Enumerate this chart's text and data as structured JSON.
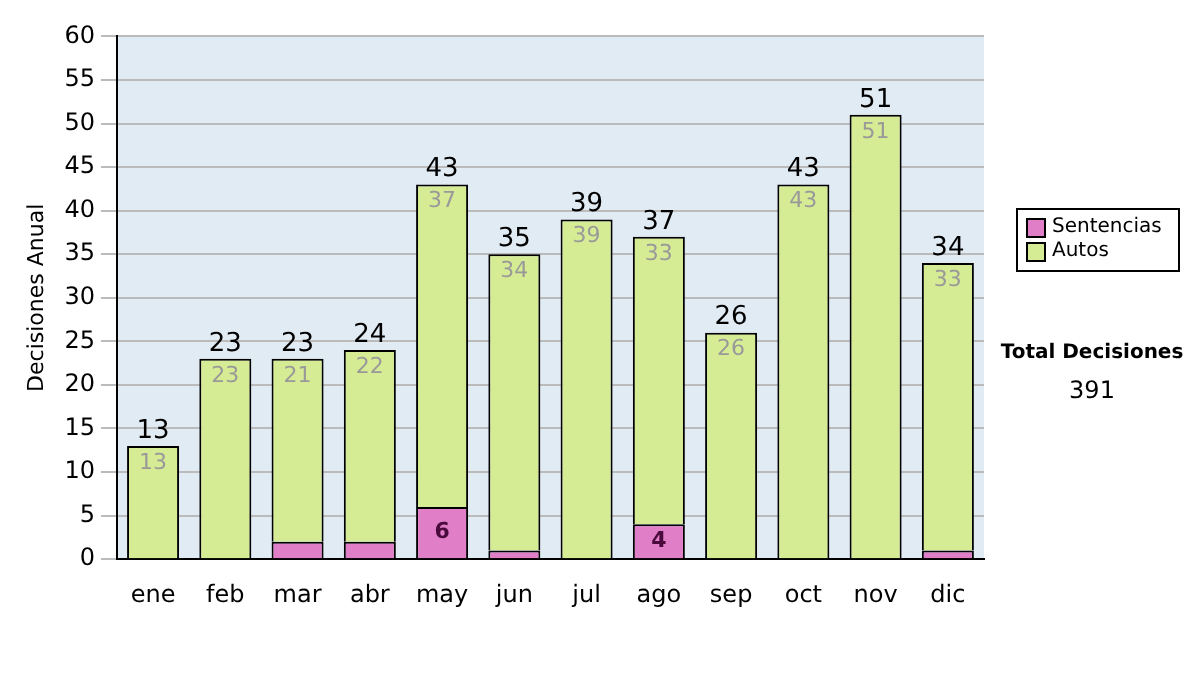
{
  "chart_data": {
    "type": "bar",
    "stacked": true,
    "ylabel": "Decisiones Anual",
    "categories": [
      "ene",
      "feb",
      "mar",
      "abr",
      "may",
      "jun",
      "jul",
      "ago",
      "sep",
      "oct",
      "nov",
      "dic"
    ],
    "series": [
      {
        "name": "Sentencias",
        "color": "#e07fc8",
        "values": [
          0,
          0,
          2,
          2,
          6,
          1,
          0,
          4,
          0,
          0,
          0,
          1
        ],
        "value_labels": [
          null,
          null,
          null,
          null,
          "6",
          null,
          null,
          "4",
          null,
          null,
          null,
          null
        ]
      },
      {
        "name": "Autos",
        "color": "#d6ec94",
        "values": [
          13,
          23,
          21,
          22,
          37,
          34,
          39,
          33,
          26,
          43,
          51,
          33
        ],
        "value_labels": [
          "13",
          "23",
          "21",
          "22",
          "37",
          "34",
          "39",
          "33",
          "26",
          "43",
          "51",
          "33"
        ]
      }
    ],
    "totals": [
      "13",
      "23",
      "23",
      "24",
      "43",
      "35",
      "39",
      "37",
      "26",
      "43",
      "51",
      "34"
    ],
    "ylim": [
      0,
      60
    ],
    "yticks": [
      0,
      5,
      10,
      15,
      20,
      25,
      30,
      35,
      40,
      45,
      50,
      55,
      60
    ],
    "grid": "y",
    "legend": "right",
    "annotations": [
      "Total Decisiones",
      "391"
    ]
  }
}
